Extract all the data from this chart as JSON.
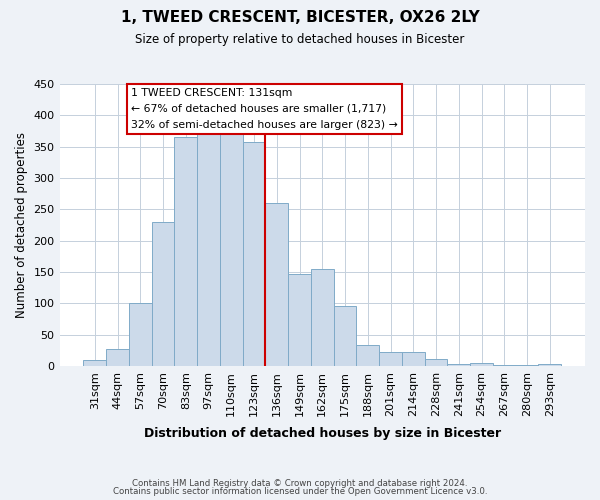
{
  "title": "1, TWEED CRESCENT, BICESTER, OX26 2LY",
  "subtitle": "Size of property relative to detached houses in Bicester",
  "xlabel": "Distribution of detached houses by size in Bicester",
  "ylabel": "Number of detached properties",
  "bar_color": "#ccdaea",
  "bar_edge_color": "#7faac8",
  "categories": [
    "31sqm",
    "44sqm",
    "57sqm",
    "70sqm",
    "83sqm",
    "97sqm",
    "110sqm",
    "123sqm",
    "136sqm",
    "149sqm",
    "162sqm",
    "175sqm",
    "188sqm",
    "201sqm",
    "214sqm",
    "228sqm",
    "241sqm",
    "254sqm",
    "267sqm",
    "280sqm",
    "293sqm"
  ],
  "values": [
    10,
    27,
    100,
    230,
    365,
    370,
    373,
    357,
    260,
    147,
    155,
    95,
    33,
    22,
    22,
    11,
    3,
    5,
    1,
    1,
    3
  ],
  "ylim": [
    0,
    450
  ],
  "vline_color": "#cc0000",
  "annotation_title": "1 TWEED CRESCENT: 131sqm",
  "annotation_line1": "← 67% of detached houses are smaller (1,717)",
  "annotation_line2": "32% of semi-detached houses are larger (823) →",
  "footnote1": "Contains HM Land Registry data © Crown copyright and database right 2024.",
  "footnote2": "Contains public sector information licensed under the Open Government Licence v3.0.",
  "background_color": "#eef2f7",
  "plot_background_color": "#ffffff",
  "grid_color": "#c5d0dc"
}
